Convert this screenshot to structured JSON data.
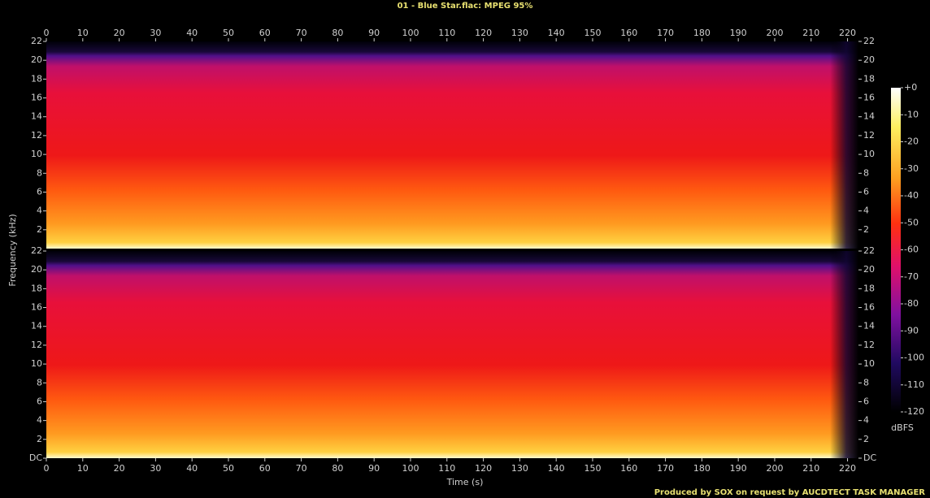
{
  "chart_data": {
    "type": "spectrogram",
    "title": "01 - Blue Star.flac: MPEG 95%",
    "x_label": "Time (s)",
    "y_label": "Frequency (kHz)",
    "xlim": [
      0,
      223
    ],
    "xticks": [
      0,
      10,
      20,
      30,
      40,
      50,
      60,
      70,
      80,
      90,
      100,
      110,
      120,
      130,
      140,
      150,
      160,
      170,
      180,
      190,
      200,
      210,
      220
    ],
    "panels": [
      {
        "ylim": [
          0,
          22
        ],
        "yticks": [
          2,
          4,
          6,
          8,
          10,
          12,
          14,
          16,
          18,
          20,
          22
        ]
      },
      {
        "ylim": [
          0,
          22
        ],
        "yticks": [
          {
            "value": 0,
            "label": "DC"
          },
          2,
          4,
          6,
          8,
          10,
          12,
          14,
          16,
          18,
          20,
          22
        ]
      }
    ],
    "colorbar": {
      "label": "dBFS",
      "lim": [
        -120,
        0
      ],
      "ticks": [
        {
          "value": 0,
          "label": "+0"
        },
        -10,
        -20,
        -30,
        -40,
        -50,
        -60,
        -70,
        -80,
        -90,
        -100,
        -110,
        -120
      ]
    },
    "footer": "Produced by SOX on request by AUCDTECT TASK MANAGER"
  }
}
